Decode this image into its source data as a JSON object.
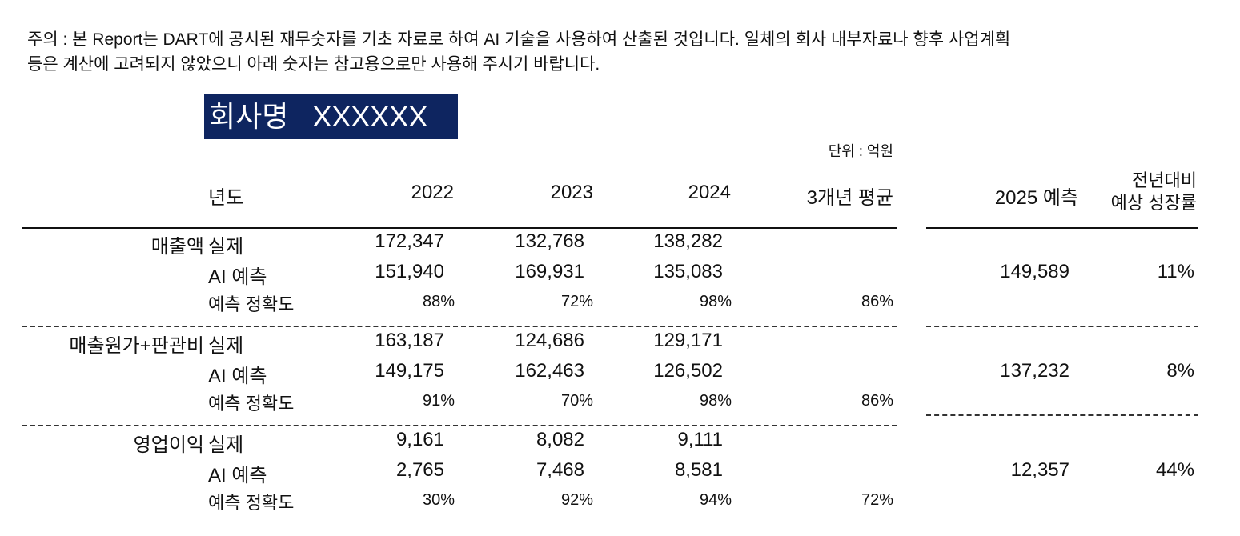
{
  "notice": {
    "line1": "주의 : 본 Report는 DART에 공시된 재무숫자를 기초 자료로 하여 AI 기술을 사용하여 산출된 것입니다. 일체의 회사 내부자료나 향후 사업계획",
    "line2": "등은 계산에 고려되지 않았으니 아래 숫자는 참고용으로만 사용해 주시기 바랍니다."
  },
  "company": {
    "label": "회사명",
    "name": "XXXXXX",
    "color": "#0e2560"
  },
  "unit": "단위 : 억원",
  "headers": {
    "year": "년도",
    "y2022": "2022",
    "y2023": "2023",
    "y2024": "2024",
    "avg": "3개년 평균",
    "forecast": "2025 예측",
    "growth_line1": "전년대비",
    "growth_line2": "예상 성장률"
  },
  "row_labels": {
    "actual": "실제",
    "ai": "AI 예측",
    "accuracy": "예측 정확도"
  },
  "sections": [
    {
      "name": "매출액",
      "actual": [
        "172,347",
        "132,768",
        "138,282"
      ],
      "ai": [
        "151,940",
        "169,931",
        "135,083"
      ],
      "accuracy": [
        "88%",
        "72%",
        "98%"
      ],
      "avg_accuracy": "86%",
      "forecast_2025": "149,589",
      "growth": "11%"
    },
    {
      "name": "매출원가+판관비",
      "actual": [
        "163,187",
        "124,686",
        "129,171"
      ],
      "ai": [
        "149,175",
        "162,463",
        "126,502"
      ],
      "accuracy": [
        "91%",
        "70%",
        "98%"
      ],
      "avg_accuracy": "86%",
      "forecast_2025": "137,232",
      "growth": "8%"
    },
    {
      "name": "영업이익",
      "actual": [
        "9,161",
        "8,082",
        "9,111"
      ],
      "ai": [
        "2,765",
        "7,468",
        "8,581"
      ],
      "accuracy": [
        "30%",
        "92%",
        "94%"
      ],
      "avg_accuracy": "72%",
      "forecast_2025": "12,357",
      "growth": "44%"
    }
  ]
}
